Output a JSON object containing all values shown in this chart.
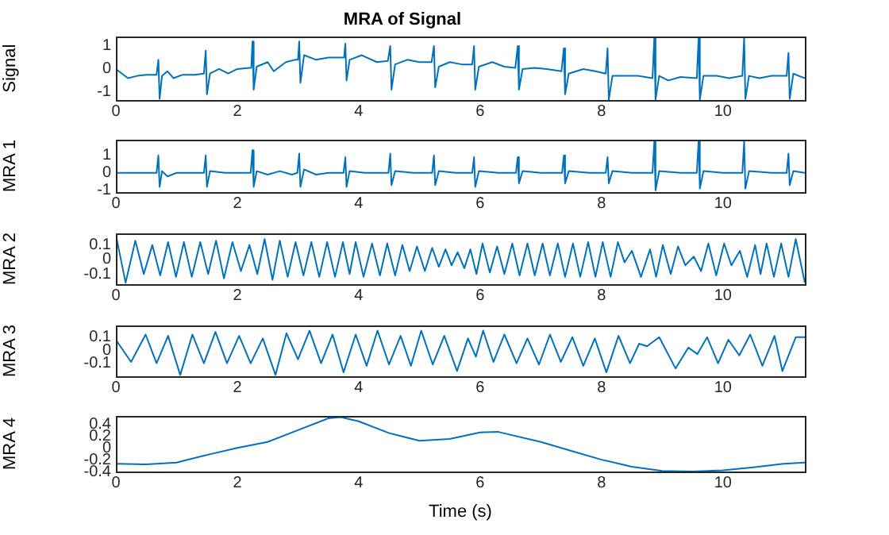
{
  "chart_data": [
    {
      "type": "line",
      "title": "MRA of Signal",
      "ylabel": "Signal",
      "xlim": [
        0,
        11.35
      ],
      "xticks": [
        0,
        2,
        4,
        6,
        8,
        10
      ],
      "ylim": [
        -1.35,
        1.4
      ],
      "yticks": [
        -1,
        0,
        1
      ],
      "marker": "none",
      "series": [
        {
          "color": "#0072bd",
          "x": [
            0,
            0.1,
            0.2,
            0.35,
            0.5,
            0.67,
            0.7,
            0.72,
            0.76,
            0.85,
            0.95,
            1.1,
            1.3,
            1.45,
            1.48,
            1.5,
            1.55,
            1.7,
            1.85,
            2.0,
            2.2,
            2.23,
            2.25,
            2.27,
            2.32,
            2.5,
            2.6,
            2.8,
            2.95,
            3.0,
            3.02,
            3.04,
            3.1,
            3.3,
            3.5,
            3.7,
            3.76,
            3.78,
            3.8,
            3.85,
            4.05,
            4.3,
            4.48,
            4.52,
            4.54,
            4.6,
            4.8,
            5.0,
            5.2,
            5.24,
            5.26,
            5.32,
            5.5,
            5.7,
            5.87,
            5.9,
            5.92,
            5.98,
            6.2,
            6.4,
            6.58,
            6.62,
            6.64,
            6.7,
            6.9,
            7.1,
            7.34,
            7.38,
            7.4,
            7.46,
            7.7,
            7.9,
            8.07,
            8.1,
            8.12,
            8.18,
            8.4,
            8.6,
            8.84,
            8.87,
            8.89,
            8.95,
            9.1,
            9.3,
            9.57,
            9.6,
            9.62,
            9.68,
            9.9,
            10.1,
            10.32,
            10.35,
            10.37,
            10.43,
            10.6,
            10.8,
            11.05,
            11.08,
            11.1,
            11.16,
            11.25,
            11.35
          ],
          "values": [
            0,
            -0.2,
            -0.4,
            -0.3,
            -0.25,
            -0.25,
            0.4,
            -1.3,
            -0.3,
            -0.1,
            -0.4,
            -0.25,
            -0.25,
            -0.2,
            0.8,
            -1.1,
            -0.2,
            0,
            -0.2,
            0,
            0.05,
            0.05,
            1.2,
            -0.9,
            0.1,
            0.3,
            -0.1,
            0.3,
            0.4,
            0.4,
            1.2,
            -0.6,
            0.6,
            0.4,
            0.5,
            0.5,
            0.5,
            1.1,
            -0.5,
            0.4,
            0.6,
            0.3,
            0.35,
            1.0,
            -0.9,
            0.2,
            0.4,
            0.3,
            0.3,
            1.0,
            -0.8,
            0.1,
            0.3,
            0.2,
            0.2,
            1.0,
            -0.9,
            0.1,
            0.3,
            0.1,
            0.05,
            1.0,
            -0.9,
            0,
            0.05,
            0,
            -0.1,
            0.9,
            -1.1,
            -0.2,
            0,
            -0.1,
            -0.2,
            0.9,
            -1.35,
            -0.3,
            -0.3,
            -0.3,
            -0.4,
            1.38,
            -1.33,
            -0.3,
            -0.5,
            -0.35,
            -0.4,
            1.38,
            -1.33,
            -0.3,
            -0.3,
            -0.4,
            -0.3,
            1.38,
            -1.3,
            -0.3,
            -0.4,
            -0.3,
            -0.3,
            0.7,
            -1.3,
            -0.2,
            -0.3,
            -0.4
          ]
        }
      ]
    },
    {
      "type": "line",
      "ylabel": "MRA 1",
      "xlim": [
        0,
        11.35
      ],
      "xticks": [
        0,
        2,
        4,
        6,
        8,
        10
      ],
      "ylim": [
        -1.1,
        1.9
      ],
      "yticks": [
        -1,
        0,
        1
      ],
      "marker": "none",
      "series": [
        {
          "color": "#0072bd",
          "x": [
            0,
            0.3,
            0.6,
            0.67,
            0.7,
            0.72,
            0.76,
            0.85,
            1.0,
            1.2,
            1.45,
            1.48,
            1.5,
            1.55,
            1.8,
            2.0,
            2.22,
            2.25,
            2.27,
            2.32,
            2.5,
            2.7,
            2.9,
            2.99,
            3.02,
            3.04,
            3.1,
            3.3,
            3.5,
            3.75,
            3.78,
            3.8,
            3.85,
            4.1,
            4.49,
            4.52,
            4.54,
            4.6,
            4.9,
            5.21,
            5.24,
            5.26,
            5.32,
            5.6,
            5.87,
            5.9,
            5.92,
            5.98,
            6.3,
            6.59,
            6.62,
            6.64,
            6.7,
            7.0,
            7.35,
            7.38,
            7.4,
            7.46,
            7.8,
            8.07,
            8.1,
            8.12,
            8.18,
            8.5,
            8.84,
            8.87,
            8.89,
            8.95,
            9.3,
            9.57,
            9.6,
            9.62,
            9.68,
            10.0,
            10.32,
            10.35,
            10.37,
            10.43,
            10.8,
            11.05,
            11.08,
            11.1,
            11.16,
            11.35
          ],
          "values": [
            0,
            0,
            0,
            0,
            1.0,
            -0.8,
            0.1,
            -0.2,
            0,
            0,
            0,
            1.0,
            -0.8,
            0.1,
            0,
            0,
            0,
            1.3,
            -0.8,
            0.1,
            -0.1,
            0.1,
            -0.1,
            0,
            1.1,
            -0.8,
            0.2,
            -0.1,
            0,
            0,
            0.9,
            -0.8,
            0.1,
            0,
            0,
            1.1,
            -0.7,
            0.1,
            0,
            0,
            1.0,
            -0.7,
            0.1,
            0,
            0,
            0.9,
            -0.8,
            0.1,
            0,
            0,
            0.9,
            -0.6,
            0.1,
            0,
            0,
            1.0,
            -0.6,
            0.1,
            0,
            0,
            0.9,
            -0.6,
            0.1,
            0,
            0,
            1.8,
            -1.0,
            0.1,
            0,
            0,
            1.88,
            -0.9,
            0.1,
            0,
            0,
            1.8,
            -0.9,
            0.1,
            0,
            0,
            1.1,
            -0.7,
            0.1,
            0
          ]
        }
      ]
    },
    {
      "type": "line",
      "ylabel": "MRA 2",
      "xlim": [
        0,
        11.35
      ],
      "xticks": [
        0,
        2,
        4,
        6,
        8,
        10
      ],
      "ylim": [
        -0.17,
        0.18
      ],
      "yticks": [
        -0.1,
        0,
        0.1
      ],
      "marker": "none",
      "series": [
        {
          "color": "#0072bd",
          "x": [
            0,
            0.16,
            0.32,
            0.46,
            0.6,
            0.73,
            0.86,
            0.99,
            1.12,
            1.25,
            1.39,
            1.52,
            1.65,
            1.78,
            1.92,
            2.06,
            2.2,
            2.33,
            2.45,
            2.58,
            2.7,
            2.83,
            2.96,
            3.09,
            3.22,
            3.35,
            3.48,
            3.61,
            3.74,
            3.85,
            3.95,
            4.08,
            4.22,
            4.35,
            4.47,
            4.6,
            4.72,
            4.84,
            4.96,
            5.09,
            5.21,
            5.32,
            5.43,
            5.53,
            5.63,
            5.74,
            5.84,
            5.94,
            6.04,
            6.16,
            6.28,
            6.4,
            6.53,
            6.65,
            6.78,
            6.9,
            7.03,
            7.15,
            7.28,
            7.4,
            7.53,
            7.65,
            7.78,
            7.9,
            8.02,
            8.15,
            8.27,
            8.38,
            8.5,
            8.65,
            8.8,
            8.9,
            9.01,
            9.14,
            9.26,
            9.38,
            9.52,
            9.64,
            9.76,
            9.89,
            10.02,
            10.14,
            10.28,
            10.4,
            10.53,
            10.62,
            10.72,
            10.84,
            10.96,
            11.08,
            11.2,
            11.35
          ],
          "values": [
            0.17,
            -0.16,
            0.13,
            -0.1,
            0.1,
            -0.11,
            0.12,
            -0.12,
            0.12,
            -0.12,
            0.12,
            -0.1,
            0.13,
            -0.13,
            0.12,
            -0.08,
            0.1,
            -0.1,
            0.14,
            -0.14,
            0.13,
            -0.12,
            0.12,
            -0.11,
            0.12,
            -0.12,
            0.12,
            -0.12,
            0.12,
            -0.1,
            0.12,
            -0.12,
            0.11,
            -0.11,
            0.11,
            -0.11,
            0.1,
            -0.08,
            0.09,
            -0.08,
            0.08,
            -0.05,
            0.07,
            -0.04,
            0.05,
            -0.06,
            0.07,
            -0.1,
            0.11,
            -0.09,
            0.09,
            -0.1,
            0.11,
            -0.11,
            0.11,
            -0.11,
            0.11,
            -0.11,
            0.11,
            -0.12,
            0.11,
            -0.12,
            0.12,
            -0.12,
            0.12,
            -0.12,
            0.12,
            -0.02,
            0.06,
            -0.12,
            0.07,
            -0.12,
            0.1,
            -0.1,
            0.09,
            -0.04,
            0.02,
            -0.08,
            0.11,
            -0.11,
            0.11,
            -0.04,
            0.06,
            -0.12,
            0.1,
            -0.1,
            0.11,
            -0.12,
            0.11,
            -0.12,
            0.14,
            -0.16
          ]
        }
      ]
    },
    {
      "type": "line",
      "ylabel": "MRA 3",
      "xlim": [
        0,
        11.35
      ],
      "xticks": [
        0,
        2,
        4,
        6,
        8,
        10
      ],
      "ylim": [
        -0.2,
        0.19
      ],
      "yticks": [
        -0.1,
        0,
        0.1
      ],
      "marker": "none",
      "series": [
        {
          "color": "#0072bd",
          "x": [
            0,
            0.25,
            0.49,
            0.67,
            0.86,
            1.06,
            1.26,
            1.45,
            1.64,
            1.83,
            2.03,
            2.22,
            2.42,
            2.63,
            2.81,
            3.0,
            3.19,
            3.38,
            3.57,
            3.75,
            3.95,
            4.13,
            4.31,
            4.5,
            4.69,
            4.86,
            5.03,
            5.22,
            5.41,
            5.62,
            5.8,
            5.93,
            6.05,
            6.22,
            6.4,
            6.6,
            6.78,
            6.97,
            7.15,
            7.33,
            7.52,
            7.7,
            7.89,
            8.08,
            8.28,
            8.47,
            8.62,
            8.75,
            8.95,
            9.22,
            9.43,
            9.58,
            9.74,
            9.92,
            10.09,
            10.27,
            10.45,
            10.65,
            10.85,
            10.98,
            11.2,
            11.35
          ],
          "values": [
            0.08,
            -0.09,
            0.12,
            -0.1,
            0.11,
            -0.19,
            0.12,
            -0.1,
            0.14,
            -0.1,
            0.11,
            -0.1,
            0.09,
            -0.19,
            0.13,
            -0.07,
            0.15,
            -0.1,
            0.12,
            -0.17,
            0.12,
            -0.12,
            0.15,
            -0.11,
            0.11,
            -0.12,
            0.15,
            -0.11,
            0.11,
            -0.16,
            0.09,
            -0.05,
            0.15,
            -0.09,
            0.12,
            -0.1,
            0.09,
            -0.11,
            0.12,
            -0.09,
            0.1,
            -0.12,
            0.09,
            -0.17,
            0.11,
            -0.1,
            0.05,
            0.03,
            0.1,
            -0.14,
            0.02,
            -0.03,
            0.1,
            -0.1,
            0.08,
            -0.04,
            0.12,
            -0.12,
            0.11,
            -0.16,
            0.1,
            0.1
          ]
        }
      ]
    },
    {
      "type": "line",
      "ylabel": "MRA 4",
      "xlabel": "Time (s)",
      "xlim": [
        0,
        11.35
      ],
      "xticks": [
        0,
        2,
        4,
        6,
        8,
        10
      ],
      "ylim": [
        -0.4,
        0.54
      ],
      "yticks": [
        -0.4,
        -0.2,
        0,
        0.2,
        0.4
      ],
      "marker": "none",
      "series": [
        {
          "color": "#0072bd",
          "x": [
            0,
            0.5,
            1,
            1.5,
            2,
            2.5,
            3,
            3.5,
            3.7,
            4,
            4.5,
            5,
            5.5,
            6,
            6.3,
            7,
            7.5,
            8,
            8.5,
            9,
            9.5,
            10,
            10.5,
            11,
            11.35
          ],
          "values": [
            -0.27,
            -0.28,
            -0.25,
            -0.12,
            0,
            0.1,
            0.3,
            0.5,
            0.52,
            0.45,
            0.25,
            0.12,
            0.15,
            0.26,
            0.27,
            0.1,
            -0.05,
            -0.2,
            -0.32,
            -0.39,
            -0.4,
            -0.38,
            -0.33,
            -0.27,
            -0.25
          ]
        }
      ]
    }
  ]
}
